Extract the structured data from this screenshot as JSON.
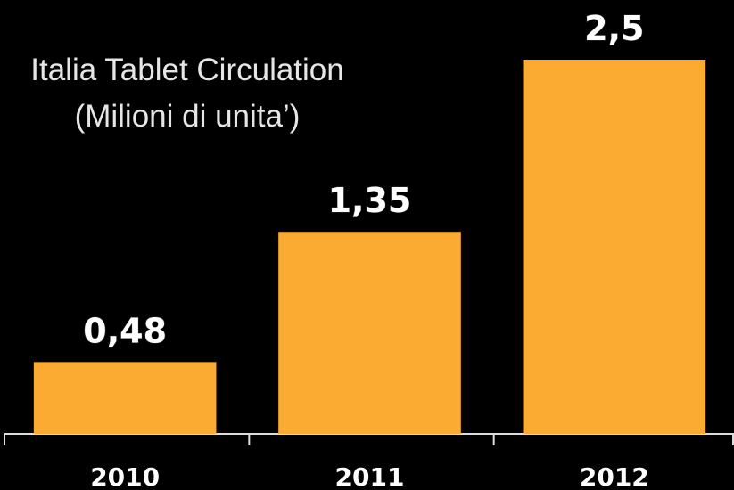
{
  "chart_data": {
    "type": "bar",
    "title": "Italia Tablet Circulation",
    "subtitle": "(Milioni di unita’)",
    "categories": [
      "2010",
      "2011",
      "2012"
    ],
    "values": [
      0.48,
      1.35,
      2.5
    ],
    "value_labels": [
      "0,48",
      "1,35",
      "2,5"
    ],
    "color": "#fbab31"
  }
}
